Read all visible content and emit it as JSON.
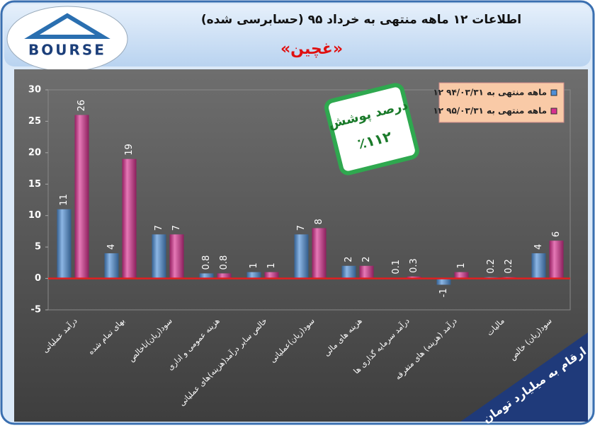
{
  "chart_data": {
    "type": "bar",
    "title": "اطلاعات ۱۲ ماهه منتهی به خرداد ۹۵ (حسابرسی شده)",
    "subtitle": "«غچین»",
    "logo": "BOURSE",
    "annotation": {
      "title": "درصد پوشش",
      "value": "٪۱۱۲"
    },
    "unit_note": "ارقام به میلیارد تومان",
    "categories": [
      "درآمد عملیاتی",
      "بهای تمام شده",
      "سود(زیان)ناخالص",
      "هزینه عمومی و اداری",
      "خالص سایر درآمد(هزینه)های عملیاتی",
      "سود(زیان)عملیاتی",
      "هزینه های مالی",
      "درآمد سرمایه گذاری ها",
      "درآمد (هزینه) های متفرقه",
      "مالیات",
      "سود(زیان) خالص"
    ],
    "series": [
      {
        "name": "۱۲ ماهه منتهی به ۹۴/۰۳/۳۱",
        "color": "#4f8fd6",
        "values": [
          11,
          4,
          7,
          0.8,
          1,
          7,
          2,
          0.1,
          -1,
          0.2,
          4
        ]
      },
      {
        "name": "۱۲ ماهه منتهی به ۹۵/۰۳/۳۱",
        "color": "#d8308f",
        "values": [
          26,
          19,
          7,
          0.8,
          1,
          8,
          2,
          0.3,
          1,
          0.2,
          6
        ]
      }
    ],
    "ylim": [
      -5,
      30
    ],
    "yticks": [
      -5,
      0,
      5,
      10,
      15,
      20,
      25,
      30
    ],
    "zero_line_color": "#e02020"
  }
}
